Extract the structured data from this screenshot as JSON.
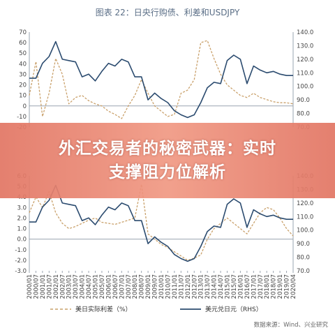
{
  "figure_title": "图表 22：日央行购债、利差和USDJPY",
  "overlay_title_line1": "外汇交易者的秘密武器：实时",
  "overlay_title_line2": "支撑阻力位解析",
  "source_note": "数据来源：Wind、兴业研究",
  "colors": {
    "spread": "#c9a06a",
    "usdjpy": "#2b4b6f",
    "axis": "#9aa4b0"
  },
  "x_ticks": [
    "2000/01",
    "2000/07",
    "2001/01",
    "2001/07",
    "2002/01",
    "2002/07",
    "2003/01",
    "2003/07",
    "2004/01",
    "2004/07",
    "2005/01",
    "2005/07",
    "2006/01",
    "2006/07",
    "2007/01",
    "2007/07",
    "2008/01",
    "2008/07",
    "2009/01",
    "2009/07",
    "2010/01",
    "2010/07",
    "2011/01",
    "2011/07",
    "2012/01",
    "2012/07",
    "2013/01",
    "2013/07",
    "2014/01",
    "2014/07",
    "2015/01",
    "2015/07",
    "2016/01",
    "2016/07",
    "2017/01",
    "2017/07",
    "2018/01",
    "2018/07",
    "2019/01",
    "2019/07",
    "2020/04"
  ],
  "legend": {
    "spread": "美日实际利差（%）",
    "usdjpy": "美元兑日元（RHS）"
  },
  "chart_data": [
    {
      "type": "line",
      "x": [
        "2000/01",
        "2000/07",
        "2001/01",
        "2001/07",
        "2002/01",
        "2002/07",
        "2003/01",
        "2003/07",
        "2004/01",
        "2004/07",
        "2005/01",
        "2005/07",
        "2006/01",
        "2006/07",
        "2007/01",
        "2007/07",
        "2008/01",
        "2008/07",
        "2009/01",
        "2009/07",
        "2010/01",
        "2010/07",
        "2011/01",
        "2011/07",
        "2012/01",
        "2012/07",
        "2013/01",
        "2013/07",
        "2014/01",
        "2014/07",
        "2015/01",
        "2015/07",
        "2016/01",
        "2016/07",
        "2017/01",
        "2017/07",
        "2018/01",
        "2018/07",
        "2019/01",
        "2019/07",
        "2020/04"
      ],
      "y_left": {
        "ticks": [
          -20,
          -10,
          0,
          10,
          20,
          30,
          40,
          50,
          60,
          70
        ],
        "range": [
          -20,
          70
        ]
      },
      "y_right": {
        "ticks": [
          "70.0",
          "80.0",
          "90.0",
          "100.0",
          "110.0",
          "120.0",
          "130.0",
          "140.0"
        ],
        "range": [
          70,
          140
        ]
      },
      "series": [
        {
          "key": "spread",
          "axis": "left",
          "values": [
            10,
            42,
            -10,
            12,
            45,
            30,
            2,
            8,
            10,
            5,
            2,
            0,
            -5,
            -8,
            -12,
            0,
            10,
            25,
            12,
            0,
            -5,
            -10,
            -8,
            12,
            15,
            25,
            60,
            62,
            45,
            30,
            20,
            15,
            10,
            8,
            12,
            8,
            6,
            4,
            3,
            3,
            2
          ]
        },
        {
          "key": "usdjpy",
          "axis": "right",
          "values": [
            106,
            106,
            117,
            122,
            133,
            120,
            119,
            118,
            107,
            109,
            104,
            111,
            117,
            115,
            120,
            118,
            107,
            107,
            90,
            95,
            91,
            88,
            82,
            79,
            77,
            79,
            88,
            99,
            103,
            102,
            119,
            123,
            120,
            102,
            115,
            112,
            110,
            111,
            109,
            108,
            108
          ]
        }
      ]
    },
    {
      "type": "line",
      "x": [
        "2000/01",
        "2000/07",
        "2001/01",
        "2001/07",
        "2002/01",
        "2002/07",
        "2003/01",
        "2003/07",
        "2004/01",
        "2004/07",
        "2005/01",
        "2005/07",
        "2006/01",
        "2006/07",
        "2007/01",
        "2007/07",
        "2008/01",
        "2008/07",
        "2009/01",
        "2009/07",
        "2010/01",
        "2010/07",
        "2011/01",
        "2011/07",
        "2012/01",
        "2012/07",
        "2013/01",
        "2013/07",
        "2014/01",
        "2014/07",
        "2015/01",
        "2015/07",
        "2016/01",
        "2016/07",
        "2017/01",
        "2017/07",
        "2018/01",
        "2018/07",
        "2019/01",
        "2019/07",
        "2020/04"
      ],
      "y_left": {
        "ticks": [
          "-3.0",
          "-2.0",
          "-1.0",
          "0.0",
          "1.0",
          "2.0",
          "3.0",
          "4.0",
          "5.0",
          "6.0"
        ],
        "range": [
          -3,
          6
        ]
      },
      "y_right": {
        "ticks": [
          "70.0",
          "80.0",
          "90.0",
          "100.0",
          "110.0",
          "120.0",
          "130.0",
          "140.0"
        ],
        "range": [
          70,
          140
        ]
      },
      "series": [
        {
          "key": "spread",
          "axis": "left",
          "values": [
            2.5,
            4.0,
            3.0,
            4.5,
            2.5,
            1.5,
            1.0,
            1.2,
            1.5,
            1.8,
            2.0,
            1.6,
            1.5,
            1.4,
            1.6,
            1.8,
            2.0,
            5.2,
            0.5,
            0.0,
            -0.5,
            -0.8,
            -1.2,
            -1.6,
            -2.0,
            -1.8,
            -1.5,
            0.0,
            1.0,
            1.5,
            2.0,
            1.5,
            1.0,
            0.5,
            1.5,
            2.5,
            3.0,
            2.8,
            2.0,
            1.0,
            0.3
          ]
        },
        {
          "key": "usdjpy",
          "axis": "right",
          "values": [
            106,
            106,
            117,
            122,
            133,
            120,
            119,
            118,
            107,
            109,
            104,
            111,
            117,
            115,
            120,
            118,
            107,
            107,
            90,
            95,
            91,
            88,
            82,
            79,
            77,
            79,
            88,
            99,
            103,
            102,
            119,
            123,
            120,
            102,
            115,
            112,
            110,
            111,
            109,
            108,
            108
          ]
        }
      ]
    }
  ]
}
